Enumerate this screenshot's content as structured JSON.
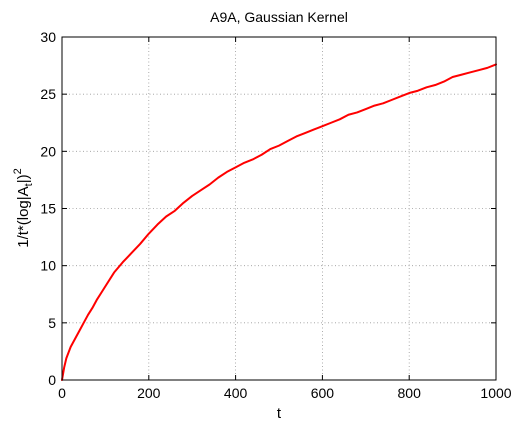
{
  "chart_data": {
    "type": "line",
    "title": "A9A, Gaussian Kernel",
    "xlabel": "t",
    "ylabel": {
      "base": "1/t*(log|A",
      "subscript": "t",
      "mid": "|)",
      "superscript": "2"
    },
    "xlim": [
      0,
      1000
    ],
    "ylim": [
      0,
      30
    ],
    "xticks": [
      0,
      200,
      400,
      600,
      800,
      1000
    ],
    "yticks": [
      0,
      5,
      10,
      15,
      20,
      25,
      30
    ],
    "grid": true,
    "series": [
      {
        "color": "#ff0000",
        "x": [
          0,
          5,
          10,
          20,
          30,
          40,
          50,
          60,
          70,
          80,
          90,
          100,
          120,
          140,
          150,
          160,
          180,
          200,
          220,
          240,
          260,
          280,
          300,
          320,
          340,
          360,
          380,
          400,
          420,
          440,
          460,
          480,
          500,
          520,
          540,
          560,
          580,
          600,
          620,
          640,
          660,
          680,
          700,
          720,
          740,
          760,
          780,
          800,
          820,
          840,
          860,
          880,
          900,
          920,
          940,
          960,
          980,
          1000
        ],
        "y": [
          0,
          1.1,
          1.9,
          2.9,
          3.6,
          4.3,
          5.0,
          5.7,
          6.3,
          7.0,
          7.6,
          8.2,
          9.4,
          10.3,
          10.7,
          11.1,
          11.9,
          12.8,
          13.6,
          14.3,
          14.8,
          15.5,
          16.1,
          16.6,
          17.1,
          17.7,
          18.2,
          18.6,
          19.0,
          19.3,
          19.7,
          20.2,
          20.5,
          20.9,
          21.3,
          21.6,
          21.9,
          22.2,
          22.5,
          22.8,
          23.2,
          23.4,
          23.7,
          24.0,
          24.2,
          24.5,
          24.8,
          25.1,
          25.3,
          25.6,
          25.8,
          26.1,
          26.5,
          26.7,
          26.9,
          27.1,
          27.3,
          27.6
        ]
      }
    ]
  }
}
